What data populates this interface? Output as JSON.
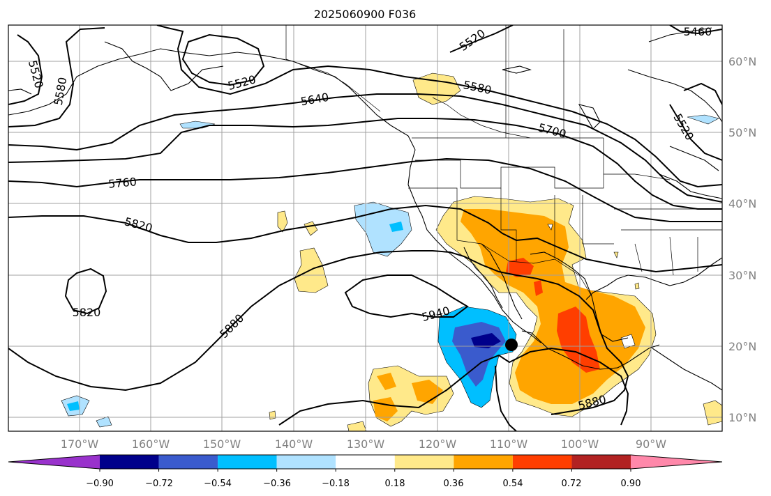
{
  "title": "2025060900 F036",
  "map": {
    "lon_labels": [
      "170°W",
      "160°W",
      "150°W",
      "140°W",
      "130°W",
      "120°W",
      "110°W",
      "100°W",
      "90°W"
    ],
    "lat_labels": [
      "60°N",
      "50°N",
      "40°N",
      "30°N",
      "20°N",
      "10°N"
    ],
    "contour_labels": [
      "5460",
      "5520",
      "5520",
      "5520",
      "5580",
      "5520",
      "5580",
      "5640",
      "5700",
      "5760",
      "5820",
      "5820",
      "5880",
      "5940",
      "5880"
    ],
    "marker": "storm-center"
  },
  "colorbar": {
    "ticks": [
      "−0.90",
      "−0.72",
      "−0.54",
      "−0.36",
      "−0.18",
      "0.18",
      "0.36",
      "0.54",
      "0.72",
      "0.90"
    ],
    "colors": [
      "#9932cc",
      "#00008b",
      "#3a5bcd",
      "#00bfff",
      "#b0e2ff",
      "#ffffff",
      "#ffe98a",
      "#ffa500",
      "#ff3e00",
      "#b22222",
      "#ff88aa"
    ],
    "extend": "both"
  }
}
